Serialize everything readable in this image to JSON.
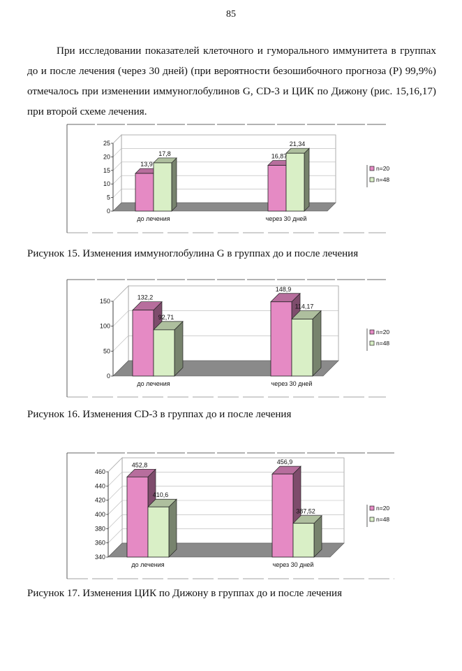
{
  "page_number": "85",
  "paragraph": "При исследовании показателей клеточного и гуморального иммунитета в группах до и после лечения (через 30 дней) (при вероятности безошибочного прогноза (Р) 99,9%) отмечалось при изменении иммуноглобулинов G, CD-3 и ЦИК по Дижону (рис. 15,16,17) при второй схеме лечения.",
  "captions": {
    "fig15": "Рисунок 15. Изменения иммуноглобулина G в группах до и после лечения",
    "fig16": "Рисунок 16. Изменения CD-3 в группах до и после лечения",
    "fig17": "Рисунок 17. Изменения ЦИК по Дижону в группах до и после лечения"
  },
  "colors": {
    "n20": "#e58ac4",
    "n48": "#d9efc6",
    "floor": "#8a8a8a"
  },
  "chart_data": [
    {
      "type": "bar",
      "title": "",
      "categories": [
        "до лечения",
        "через 30 дней"
      ],
      "series": [
        {
          "name": "n=20",
          "values": [
            13.9,
            16.87
          ],
          "labels": [
            "13,9",
            "16,87"
          ]
        },
        {
          "name": "n=48",
          "values": [
            17.8,
            21.34
          ],
          "labels": [
            "17,8",
            "21,34"
          ]
        }
      ],
      "ylim": [
        0,
        25
      ],
      "yticks": [
        "0",
        "5",
        "10",
        "15",
        "20",
        "25"
      ],
      "grid": true,
      "legend": "right"
    },
    {
      "type": "bar",
      "title": "",
      "categories": [
        "до лечения",
        "через 30 дней"
      ],
      "series": [
        {
          "name": "n=20",
          "values": [
            132.2,
            148.9
          ],
          "labels": [
            "132,2",
            "148,9"
          ]
        },
        {
          "name": "n=48",
          "values": [
            92.71,
            114.17
          ],
          "labels": [
            "92,71",
            "114,17"
          ]
        }
      ],
      "ylim": [
        0,
        150
      ],
      "yticks": [
        "0",
        "50",
        "100",
        "150"
      ],
      "grid": true,
      "legend": "right"
    },
    {
      "type": "bar",
      "title": "",
      "categories": [
        "до лечения",
        "через 30 дней"
      ],
      "series": [
        {
          "name": "n=20",
          "values": [
            452.8,
            456.9
          ],
          "labels": [
            "452,8",
            "456,9"
          ]
        },
        {
          "name": "n=48",
          "values": [
            410.6,
            387.52
          ],
          "labels": [
            "410,6",
            "387,52"
          ]
        }
      ],
      "ylim": [
        340,
        460
      ],
      "yticks": [
        "340",
        "360",
        "380",
        "400",
        "420",
        "440",
        "460"
      ],
      "grid": true,
      "legend": "right"
    }
  ]
}
